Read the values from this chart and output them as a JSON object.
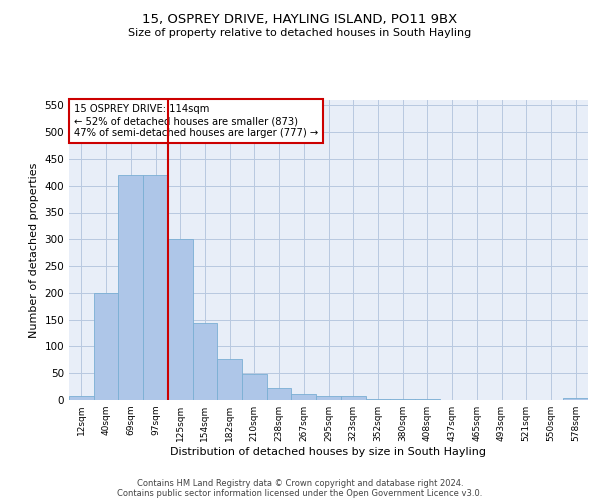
{
  "title_line1": "15, OSPREY DRIVE, HAYLING ISLAND, PO11 9BX",
  "title_line2": "Size of property relative to detached houses in South Hayling",
  "xlabel": "Distribution of detached houses by size in South Hayling",
  "ylabel": "Number of detached properties",
  "categories": [
    "12sqm",
    "40sqm",
    "69sqm",
    "97sqm",
    "125sqm",
    "154sqm",
    "182sqm",
    "210sqm",
    "238sqm",
    "267sqm",
    "295sqm",
    "323sqm",
    "352sqm",
    "380sqm",
    "408sqm",
    "437sqm",
    "465sqm",
    "493sqm",
    "521sqm",
    "550sqm",
    "578sqm"
  ],
  "values": [
    8,
    200,
    420,
    420,
    300,
    143,
    77,
    49,
    23,
    12,
    8,
    7,
    1,
    1,
    1,
    0,
    0,
    0,
    0,
    0,
    3
  ],
  "bar_color": "#aec6e8",
  "bar_edgecolor": "#7aafd4",
  "vline_color": "#cc0000",
  "vline_x": 3.5,
  "annotation_text": "15 OSPREY DRIVE: 114sqm\n← 52% of detached houses are smaller (873)\n47% of semi-detached houses are larger (777) →",
  "annotation_box_color": "#ffffff",
  "annotation_box_edgecolor": "#cc0000",
  "ylim": [
    0,
    560
  ],
  "yticks": [
    0,
    50,
    100,
    150,
    200,
    250,
    300,
    350,
    400,
    450,
    500,
    550
  ],
  "footnote1": "Contains HM Land Registry data © Crown copyright and database right 2024.",
  "footnote2": "Contains public sector information licensed under the Open Government Licence v3.0.",
  "background_color": "#e8eef8"
}
